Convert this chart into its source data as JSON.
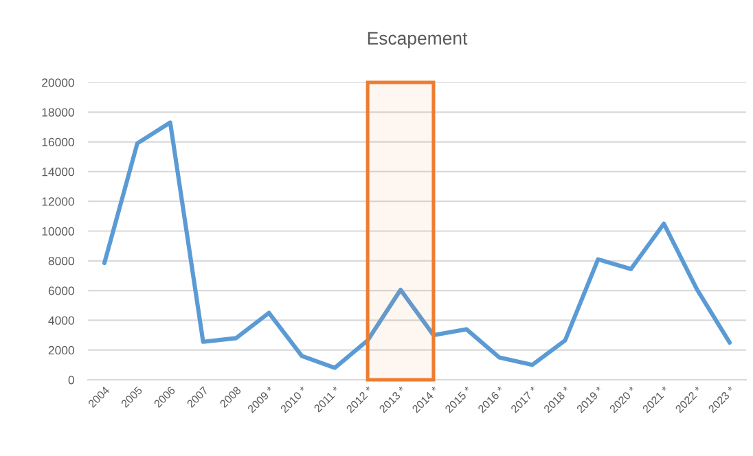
{
  "chart_data": {
    "type": "line",
    "title": "Escapement",
    "categories": [
      "2004",
      "2005",
      "2006",
      "2007",
      "2008",
      "2009 *",
      "2010 *",
      "2011 *",
      "2012 *",
      "2013 *",
      "2014 *",
      "2015 *",
      "2016 *",
      "2017 *",
      "2018 *",
      "2019 *",
      "2020 *",
      "2021 *",
      "2022 *",
      "2023 *"
    ],
    "series": [
      {
        "color": "#5b9bd5",
        "values": [
          7850,
          15900,
          17300,
          2550,
          2800,
          4500,
          1600,
          800,
          2650,
          6050,
          3000,
          3400,
          1500,
          1000,
          2650,
          8100,
          7450,
          10500,
          6100,
          2500
        ]
      }
    ],
    "ylim": [
      0,
      20000
    ],
    "yticks": [
      0,
      2000,
      4000,
      6000,
      8000,
      10000,
      12000,
      14000,
      16000,
      18000,
      20000
    ],
    "grid": "y",
    "line_style": "solid",
    "bands": [
      {
        "axis": "x",
        "from": "2012 *",
        "to": "2014 *",
        "color": "#ed7d31"
      }
    ]
  }
}
